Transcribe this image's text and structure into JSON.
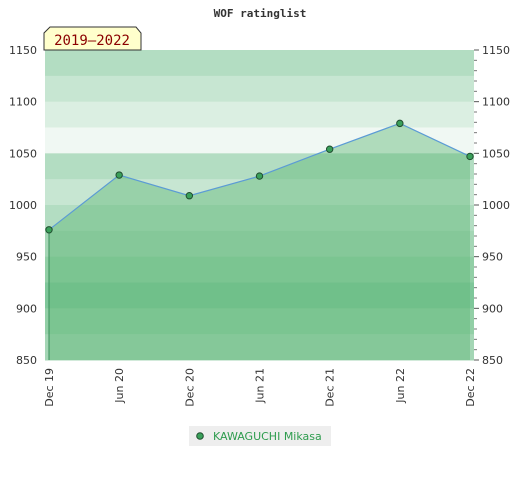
{
  "chart_data": {
    "type": "area",
    "title": "WOF ratinglist",
    "badge": "2019–2022",
    "xlabel": "",
    "ylabel": "",
    "x_ticks": [
      "Dec 19",
      "Jun 20",
      "Dec 20",
      "Jun 21",
      "Dec 21",
      "Jun 22",
      "Dec 22"
    ],
    "ylim": [
      850,
      1150
    ],
    "y_ticks": [
      850,
      900,
      950,
      1000,
      1050,
      1100,
      1150
    ],
    "series": [
      {
        "name": "KAWAGUCHI Mikasa",
        "x": [
          0,
          1,
          2,
          3,
          4,
          5,
          6
        ],
        "values": [
          976,
          1029,
          1009,
          1028,
          1054,
          1079,
          1047
        ]
      }
    ],
    "legend_position": "bottom-center",
    "colors": {
      "line": "#5b9bd5",
      "fill": "#5fb878",
      "marker": "#3aa05a",
      "band_dark": "#7fc79a",
      "band_light": "#f0f8f3",
      "badge_bg": "#ffffcc",
      "legend_text": "#2e9c4e"
    }
  }
}
